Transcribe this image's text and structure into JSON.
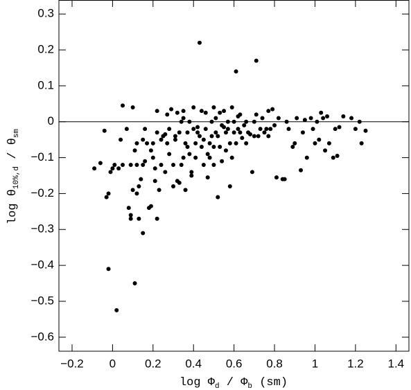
{
  "chart_data": {
    "type": "scatter",
    "xlabel": [
      "log Φ",
      "d",
      " / Φ",
      "b",
      " (sm)"
    ],
    "ylabel": [
      "log θ",
      "10%,d",
      " / θ",
      "sm"
    ],
    "xlim": [
      -0.265,
      1.464
    ],
    "ylim": [
      -0.639,
      0.339
    ],
    "xticks": [
      {
        "value": -0.2,
        "label": "−0.2"
      },
      0,
      0.2,
      0.4,
      0.6,
      0.8,
      1,
      1.2,
      1.4
    ],
    "yticks": [
      {
        "value": -0.6,
        "label": "−0.6"
      },
      {
        "value": -0.5,
        "label": "−0.5"
      },
      {
        "value": -0.4,
        "label": "−0.4"
      },
      {
        "value": -0.3,
        "label": "−0.3"
      },
      {
        "value": -0.2,
        "label": "−0.2"
      },
      {
        "value": -0.1,
        "label": "−0.1"
      },
      0,
      0.1,
      0.2,
      0.3
    ],
    "hline": 0,
    "color": "#000000",
    "x": [
      -0.09,
      -0.06,
      -0.04,
      -0.03,
      -0.02,
      -0.01,
      -0.02,
      0.0,
      0.01,
      0.02,
      0.03,
      0.04,
      0.05,
      0.05,
      0.07,
      0.08,
      0.09,
      0.09,
      0.09,
      0.1,
      0.1,
      0.11,
      0.11,
      0.12,
      0.12,
      0.12,
      0.13,
      0.13,
      0.14,
      0.15,
      0.15,
      0.15,
      0.16,
      0.16,
      0.17,
      0.18,
      0.19,
      0.19,
      0.2,
      0.2,
      0.21,
      0.21,
      0.22,
      0.22,
      0.22,
      0.23,
      0.24,
      0.24,
      0.25,
      0.26,
      0.26,
      0.27,
      0.27,
      0.28,
      0.28,
      0.29,
      0.3,
      0.3,
      0.31,
      0.31,
      0.32,
      0.32,
      0.33,
      0.33,
      0.34,
      0.34,
      0.35,
      0.35,
      0.35,
      0.36,
      0.36,
      0.37,
      0.37,
      0.38,
      0.38,
      0.39,
      0.39,
      0.4,
      0.4,
      0.41,
      0.41,
      0.42,
      0.42,
      0.43,
      0.43,
      0.44,
      0.44,
      0.45,
      0.45,
      0.46,
      0.46,
      0.47,
      0.47,
      0.48,
      0.48,
      0.49,
      0.49,
      0.5,
      0.5,
      0.5,
      0.51,
      0.51,
      0.52,
      0.52,
      0.53,
      0.53,
      0.54,
      0.54,
      0.55,
      0.55,
      0.56,
      0.56,
      0.57,
      0.57,
      0.58,
      0.58,
      0.59,
      0.59,
      0.6,
      0.6,
      0.61,
      0.61,
      0.62,
      0.62,
      0.63,
      0.63,
      0.64,
      0.65,
      0.66,
      0.66,
      0.67,
      0.68,
      0.69,
      0.7,
      0.7,
      0.71,
      0.71,
      0.72,
      0.73,
      0.74,
      0.75,
      0.76,
      0.77,
      0.77,
      0.78,
      0.79,
      0.8,
      0.81,
      0.82,
      0.84,
      0.85,
      0.86,
      0.87,
      0.89,
      0.9,
      0.91,
      0.93,
      0.94,
      0.95,
      0.96,
      0.98,
      0.99,
      1.0,
      1.01,
      1.02,
      1.03,
      1.04,
      1.05,
      1.06,
      1.07,
      1.09,
      1.1,
      1.11,
      1.12,
      1.14,
      1.18,
      1.2,
      1.22,
      1.23,
      1.25
    ],
    "values": [
      -0.13,
      -0.115,
      -0.025,
      -0.21,
      -0.2,
      -0.14,
      -0.41,
      -0.13,
      -0.12,
      -0.525,
      -0.13,
      -0.05,
      0.045,
      -0.12,
      -0.02,
      -0.24,
      -0.26,
      -0.27,
      -0.12,
      0.04,
      -0.19,
      -0.45,
      -0.08,
      -0.06,
      -0.2,
      -0.12,
      -0.27,
      -0.18,
      -0.16,
      -0.31,
      -0.12,
      -0.05,
      -0.11,
      -0.02,
      -0.06,
      -0.24,
      -0.235,
      -0.08,
      -0.1,
      -0.06,
      -0.13,
      -0.165,
      0.03,
      -0.27,
      -0.03,
      -0.19,
      -0.12,
      -0.05,
      -0.04,
      -0.035,
      -0.14,
      0.02,
      -0.06,
      -0.09,
      -0.02,
      0.035,
      -0.12,
      -0.18,
      -0.04,
      -0.05,
      0.025,
      -0.165,
      -0.17,
      -0.03,
      0.0,
      -0.12,
      -0.1,
      0.03,
      0.01,
      -0.06,
      -0.19,
      -0.07,
      -0.03,
      0.0,
      -0.09,
      -0.14,
      -0.15,
      0.04,
      -0.02,
      -0.06,
      -0.1,
      -0.03,
      -0.015,
      0.22,
      -0.04,
      0.03,
      -0.07,
      -0.12,
      -0.05,
      0.025,
      -0.02,
      -0.09,
      -0.155,
      -0.06,
      -0.1,
      0.0,
      -0.04,
      0.04,
      -0.07,
      -0.12,
      0.01,
      -0.03,
      -0.21,
      -0.04,
      0.025,
      -0.07,
      -0.01,
      -0.11,
      0.03,
      -0.015,
      -0.03,
      -0.08,
      0.0,
      -0.02,
      -0.06,
      -0.18,
      0.04,
      -0.1,
      -0.03,
      0.0,
      0.14,
      -0.06,
      0.015,
      -0.02,
      -0.03,
      0.02,
      -0.045,
      -0.01,
      -0.06,
      0.0,
      -0.03,
      -0.035,
      -0.14,
      0.0,
      -0.04,
      0.17,
      0.02,
      -0.04,
      -0.02,
      0.01,
      -0.03,
      -0.02,
      -0.04,
      0.03,
      -0.02,
      0.035,
      -0.01,
      -0.155,
      0.01,
      -0.16,
      -0.16,
      0.0,
      -0.02,
      -0.07,
      -0.06,
      0.01,
      -0.135,
      -0.03,
      0.005,
      -0.1,
      0.01,
      -0.02,
      -0.06,
      0.0,
      -0.05,
      0.025,
      0.01,
      -0.08,
      0.015,
      -0.06,
      -0.1,
      -0.02,
      -0.095,
      -0.015,
      0.015,
      0.01,
      -0.02,
      0.0,
      -0.06,
      -0.025
    ]
  }
}
